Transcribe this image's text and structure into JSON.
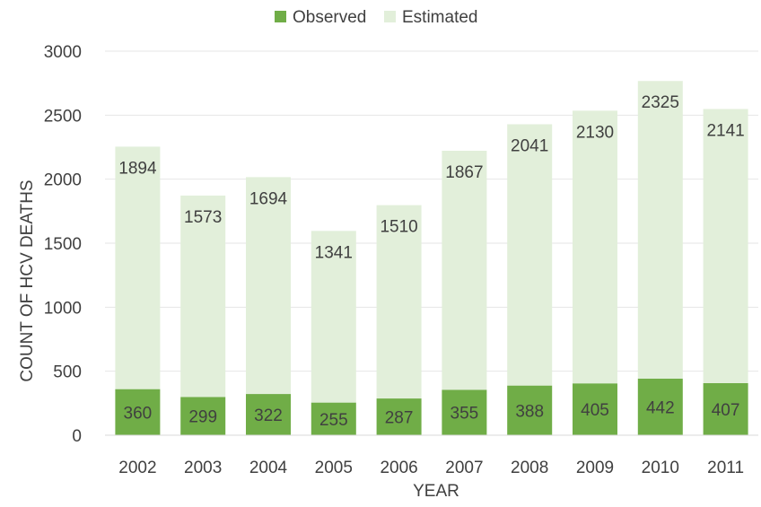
{
  "chart_data": {
    "type": "bar",
    "stacked": true,
    "title": "",
    "xlabel": "YEAR",
    "ylabel": "COUNT OF HCV DEATHS",
    "ylim": [
      0,
      3000
    ],
    "yticks": [
      0,
      500,
      1000,
      1500,
      2000,
      2500,
      3000
    ],
    "grid": true,
    "legend_position": "top",
    "categories": [
      "2002",
      "2003",
      "2004",
      "2005",
      "2006",
      "2007",
      "2008",
      "2009",
      "2010",
      "2011"
    ],
    "series": [
      {
        "name": "Observed",
        "color": "#70ad47",
        "values": [
          360,
          299,
          322,
          255,
          287,
          355,
          388,
          405,
          442,
          407
        ]
      },
      {
        "name": "Estimated",
        "color": "#e2efda",
        "values": [
          1894,
          1573,
          1694,
          1341,
          1510,
          1867,
          2041,
          2130,
          2325,
          2141
        ]
      }
    ]
  }
}
